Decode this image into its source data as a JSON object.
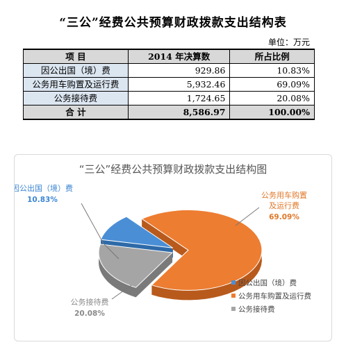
{
  "table": {
    "title": "“三公”经费公共预算财政拨款支出结构表",
    "unit": "单位：万元",
    "headers": [
      "项 目",
      "2014 年决算数",
      "所占比例"
    ],
    "rows": [
      {
        "item": "因公出国（境）费",
        "amount": "929.86",
        "share": "10.83%"
      },
      {
        "item": "公务用车购置及运行费",
        "amount": "5,932.46",
        "share": "69.09%"
      },
      {
        "item": "公务接待费",
        "amount": "1,724.65",
        "share": "20.08%"
      }
    ],
    "total": {
      "item": "合 计",
      "amount": "8,586.97",
      "share": "100.00%"
    }
  },
  "chart_data": {
    "type": "pie",
    "title": "“三公”经费公共预算财政拨款支出结构图",
    "categories": [
      "因公出国（境）费",
      "公务用车购置及运行费",
      "公务接待费"
    ],
    "category_lines": [
      [
        "因公出国（境）费"
      ],
      [
        "公务用车购置",
        "及运行费"
      ],
      [
        "公务接待费"
      ]
    ],
    "values": [
      10.83,
      69.09,
      20.08
    ],
    "value_labels": [
      "10.83%",
      "69.09%",
      "20.08%"
    ],
    "colors": [
      "#4a8fd6",
      "#ed7d31",
      "#a5a5a5"
    ],
    "dark_colors": [
      "#2e6aa8",
      "#b85a1c",
      "#7a7a7a"
    ],
    "label_colors": [
      "#3c86d4",
      "#e0782a",
      "#8a8a8a"
    ],
    "legend": [
      "因公出国（境）费",
      "公务用车购置及运行费",
      "公务接待费"
    ],
    "legend_position": "right",
    "exploded": true,
    "three_d": true
  }
}
